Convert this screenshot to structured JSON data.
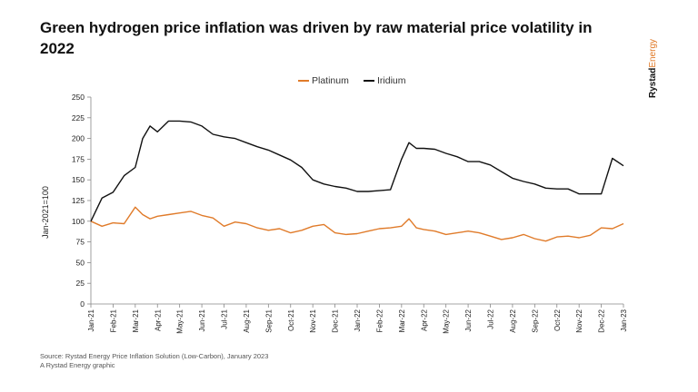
{
  "title": "Green hydrogen price inflation was driven by raw material price volatility in 2022",
  "brand": {
    "name_bold": "Rystad",
    "name_light": "Energy"
  },
  "footer": {
    "source": "Source: Rystad Energy Price Inflation Solution (Low-Carbon), January 2023",
    "credit": "A Rystad Energy graphic"
  },
  "colors": {
    "platinum": "#e07b2a",
    "iridium": "#111111",
    "axis": "#888888",
    "brand_accent": "#e07b2a"
  },
  "chart_data": {
    "type": "line",
    "title": "Green hydrogen price inflation was driven by raw material price volatility in 2022",
    "xlabel": "",
    "ylabel": "Jan-2021=100",
    "ylim": [
      0,
      250
    ],
    "yticks": [
      0,
      25,
      50,
      75,
      100,
      125,
      150,
      175,
      200,
      225,
      250
    ],
    "grid": false,
    "legend_position": "top-center",
    "x_tick_labels": [
      "Jan-21",
      "Feb-21",
      "Mar-21",
      "Apr-21",
      "May-21",
      "Jun-21",
      "Jul-21",
      "Aug-21",
      "Sep-21",
      "Oct-21",
      "Nov-21",
      "Dec-21",
      "Jan-22",
      "Feb-22",
      "Mar-22",
      "Apr-22",
      "May-22",
      "Jun-22",
      "Jul-22",
      "Aug-22",
      "Sep-22",
      "Oct-22",
      "Nov-22",
      "Dec-22",
      "Jan-23"
    ],
    "series": [
      {
        "name": "Platinum",
        "color": "#e07b2a",
        "x": [
          "Jan-21",
          "Jan-21",
          "Feb-21",
          "Feb-21",
          "Mar-21",
          "Mar-21",
          "Mar-21",
          "Apr-21",
          "Apr-21",
          "May-21",
          "May-21",
          "Jun-21",
          "Jun-21",
          "Jul-21",
          "Jul-21",
          "Aug-21",
          "Aug-21",
          "Sep-21",
          "Sep-21",
          "Oct-21",
          "Oct-21",
          "Nov-21",
          "Nov-21",
          "Dec-21",
          "Dec-21",
          "Jan-22",
          "Jan-22",
          "Feb-22",
          "Feb-22",
          "Mar-22",
          "Mar-22",
          "Mar-22",
          "Apr-22",
          "Apr-22",
          "May-22",
          "May-22",
          "Jun-22",
          "Jun-22",
          "Jul-22",
          "Jul-22",
          "Aug-22",
          "Aug-22",
          "Sep-22",
          "Sep-22",
          "Oct-22",
          "Oct-22",
          "Nov-22",
          "Nov-22",
          "Dec-22",
          "Dec-22",
          "Jan-23"
        ],
        "values": [
          100,
          94,
          98,
          97,
          117,
          108,
          103,
          106,
          108,
          110,
          112,
          107,
          104,
          94,
          99,
          97,
          92,
          89,
          91,
          86,
          89,
          94,
          96,
          86,
          84,
          85,
          88,
          91,
          92,
          94,
          103,
          92,
          90,
          88,
          84,
          86,
          88,
          86,
          82,
          78,
          80,
          84,
          79,
          76,
          81,
          82,
          80,
          83,
          92,
          91,
          97
        ]
      },
      {
        "name": "Iridium",
        "color": "#111111",
        "x": [
          "Jan-21",
          "Jan-21",
          "Feb-21",
          "Feb-21",
          "Mar-21",
          "Mar-21",
          "Mar-21",
          "Apr-21",
          "Apr-21",
          "May-21",
          "May-21",
          "Jun-21",
          "Jun-21",
          "Jul-21",
          "Jul-21",
          "Aug-21",
          "Aug-21",
          "Sep-21",
          "Sep-21",
          "Oct-21",
          "Oct-21",
          "Nov-21",
          "Nov-21",
          "Dec-21",
          "Dec-21",
          "Jan-22",
          "Jan-22",
          "Feb-22",
          "Feb-22",
          "Mar-22",
          "Mar-22",
          "Mar-22",
          "Apr-22",
          "Apr-22",
          "May-22",
          "May-22",
          "Jun-22",
          "Jun-22",
          "Jul-22",
          "Jul-22",
          "Aug-22",
          "Aug-22",
          "Sep-22",
          "Sep-22",
          "Oct-22",
          "Oct-22",
          "Nov-22",
          "Nov-22",
          "Dec-22",
          "Dec-22",
          "Jan-23"
        ],
        "values": [
          100,
          128,
          135,
          155,
          165,
          200,
          215,
          208,
          221,
          221,
          220,
          215,
          205,
          202,
          200,
          195,
          190,
          186,
          180,
          174,
          165,
          150,
          145,
          142,
          140,
          136,
          136,
          137,
          138,
          175,
          195,
          188,
          188,
          187,
          182,
          178,
          172,
          172,
          168,
          160,
          152,
          148,
          145,
          140,
          139,
          139,
          133,
          133,
          133,
          176,
          167
        ]
      }
    ]
  }
}
